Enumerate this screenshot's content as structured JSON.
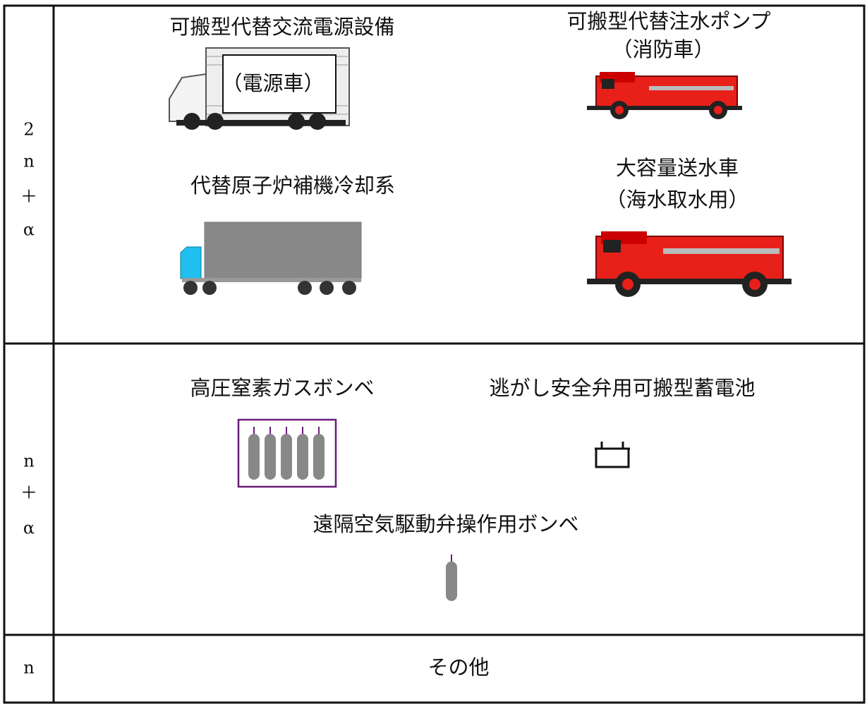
{
  "rows": [
    {
      "label": [
        "2",
        "n",
        "＋",
        "α"
      ],
      "items": [
        {
          "lines": [
            "可搬型代替交流電源設備"
          ],
          "image_label": "（電源車）"
        },
        {
          "lines": [
            "可搬型代替注水ポンプ",
            "（消防車）"
          ]
        },
        {
          "lines": [
            "代替原子炉補機冷却系"
          ]
        },
        {
          "lines": [
            "大容量送水車",
            "（海水取水用）"
          ]
        }
      ]
    },
    {
      "label": [
        "n",
        "＋",
        "α"
      ],
      "items": [
        {
          "lines": [
            "高圧窒素ガスボンベ"
          ]
        },
        {
          "lines": [
            "逃がし安全弁用可搬型蓄電池"
          ]
        },
        {
          "lines": [
            "遠隔空気駆動弁操作用ボンベ"
          ]
        }
      ]
    },
    {
      "label": [
        "n"
      ],
      "items": [
        {
          "lines": [
            "その他"
          ]
        }
      ]
    }
  ]
}
